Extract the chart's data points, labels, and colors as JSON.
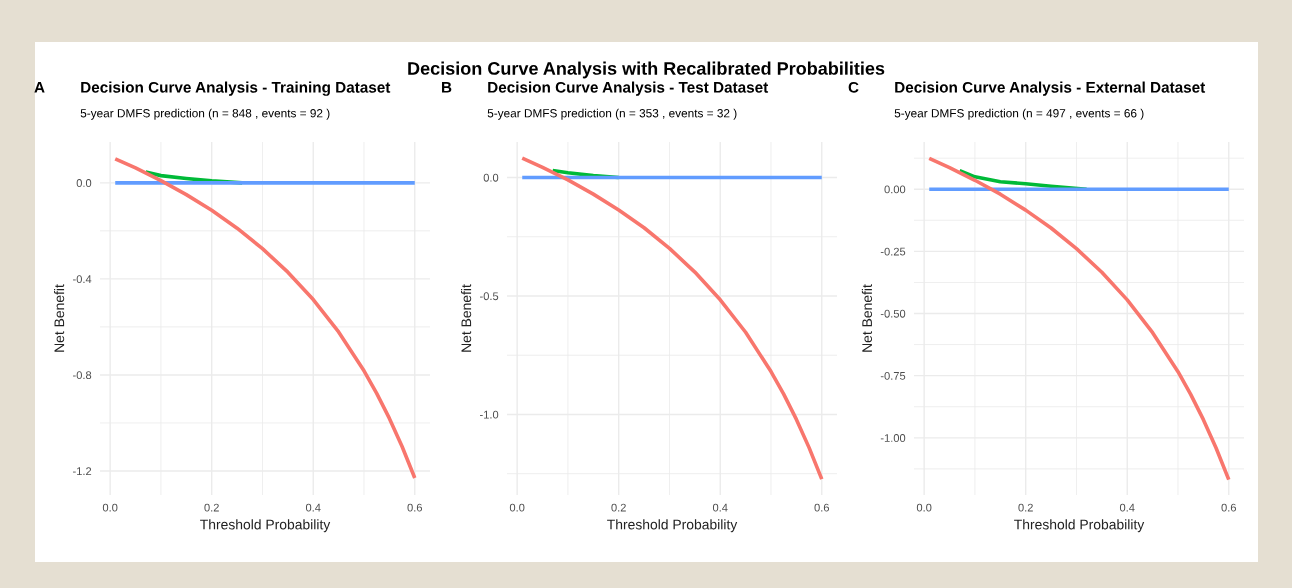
{
  "chart_data": [
    {
      "type": "line",
      "title": "Decision Curve Analysis - Training Dataset",
      "subtitle": "5-year DMFS prediction (n = 848 , events = 92 )",
      "xlabel": "Threshold Probability",
      "ylabel": "Net Benefit",
      "annotations": [
        "A",
        "Decision Curve Analysis with Recalibrated Probabilities"
      ],
      "series": [
        {
          "color": "#f8766d",
          "x": [
            0.01,
            0.05,
            0.1,
            0.15,
            0.2,
            0.25,
            0.3,
            0.35,
            0.4,
            0.45,
            0.5,
            0.525,
            0.55,
            0.575,
            0.6
          ],
          "values": [
            0.1,
            0.062,
            0.009,
            -0.049,
            -0.114,
            -0.189,
            -0.274,
            -0.372,
            -0.486,
            -0.621,
            -0.783,
            -0.877,
            -0.981,
            -1.098,
            -1.229
          ]
        },
        {
          "color": "#00ba38",
          "x": [
            0.07,
            0.1,
            0.15,
            0.2,
            0.26
          ],
          "values": [
            0.045,
            0.03,
            0.018,
            0.008,
            0
          ]
        },
        {
          "color": "#619cff",
          "x": [
            0.01,
            0.6
          ],
          "values": [
            0,
            0
          ]
        }
      ],
      "xlim": [
        -0.02,
        0.63
      ],
      "xticks": [
        {
          "value": 0,
          "label": "0.0"
        },
        {
          "value": 0.1,
          "label": null
        },
        {
          "value": 0.2,
          "label": "0.2"
        },
        {
          "value": 0.3,
          "label": null
        },
        {
          "value": 0.4,
          "label": "0.4"
        },
        {
          "value": 0.5,
          "label": null
        },
        {
          "value": 0.6,
          "label": "0.6"
        }
      ],
      "ylim": [
        -1.3,
        0.17
      ],
      "yticks": [
        {
          "value": 0,
          "label": "0.0"
        },
        {
          "value": -0.2,
          "label": null
        },
        {
          "value": -0.4,
          "label": "-0.4"
        },
        {
          "value": -0.6,
          "label": null
        },
        {
          "value": -0.8,
          "label": "-0.8"
        },
        {
          "value": -1.0,
          "label": null
        },
        {
          "value": -1.2,
          "label": "-1.2"
        }
      ],
      "grid": true,
      "legend": false
    },
    {
      "type": "line",
      "title": "Decision Curve Analysis - Test Dataset",
      "subtitle": "5-year DMFS prediction (n = 353 , events = 32 )",
      "xlabel": "Threshold Probability",
      "ylabel": "Net Benefit",
      "annotations": [
        "B"
      ],
      "series": [
        {
          "color": "#f8766d",
          "x": [
            0.01,
            0.05,
            0.1,
            0.15,
            0.2,
            0.25,
            0.3,
            0.35,
            0.4,
            0.45,
            0.5,
            0.525,
            0.55,
            0.575,
            0.6
          ],
          "values": [
            0.082,
            0.043,
            -0.01,
            -0.07,
            -0.137,
            -0.212,
            -0.299,
            -0.399,
            -0.516,
            -0.653,
            -0.819,
            -0.914,
            -1.021,
            -1.14,
            -1.273
          ]
        },
        {
          "color": "#00ba38",
          "x": [
            0.07,
            0.1,
            0.15,
            0.2
          ],
          "values": [
            0.03,
            0.02,
            0.008,
            0
          ]
        },
        {
          "color": "#619cff",
          "x": [
            0.01,
            0.6
          ],
          "values": [
            0,
            0
          ]
        }
      ],
      "xlim": [
        -0.02,
        0.63
      ],
      "xticks": [
        {
          "value": 0,
          "label": "0.0"
        },
        {
          "value": 0.1,
          "label": null
        },
        {
          "value": 0.2,
          "label": "0.2"
        },
        {
          "value": 0.3,
          "label": null
        },
        {
          "value": 0.4,
          "label": "0.4"
        },
        {
          "value": 0.5,
          "label": null
        },
        {
          "value": 0.6,
          "label": "0.6"
        }
      ],
      "ylim": [
        -1.34,
        0.15
      ],
      "yticks": [
        {
          "value": 0,
          "label": "0.0"
        },
        {
          "value": -0.25,
          "label": null
        },
        {
          "value": -0.5,
          "label": "-0.5"
        },
        {
          "value": -0.75,
          "label": null
        },
        {
          "value": -1.0,
          "label": "-1.0"
        },
        {
          "value": -1.25,
          "label": null
        }
      ],
      "grid": true,
      "legend": false
    },
    {
      "type": "line",
      "title": "Decision Curve Analysis - External Dataset",
      "subtitle": "5-year DMFS prediction (n = 497 , events = 66 )",
      "xlabel": "Threshold Probability",
      "ylabel": "Net Benefit",
      "annotations": [
        "C"
      ],
      "series": [
        {
          "color": "#f8766d",
          "x": [
            0.01,
            0.05,
            0.1,
            0.15,
            0.2,
            0.25,
            0.3,
            0.35,
            0.4,
            0.45,
            0.5,
            0.525,
            0.55,
            0.575,
            0.6
          ],
          "values": [
            0.124,
            0.087,
            0.036,
            -0.02,
            -0.084,
            -0.156,
            -0.239,
            -0.334,
            -0.445,
            -0.577,
            -0.734,
            -0.825,
            -0.927,
            -1.041,
            -1.168
          ]
        },
        {
          "color": "#00ba38",
          "x": [
            0.07,
            0.1,
            0.15,
            0.2,
            0.25,
            0.32
          ],
          "values": [
            0.075,
            0.05,
            0.03,
            0.022,
            0.012,
            0
          ]
        },
        {
          "color": "#619cff",
          "x": [
            0.01,
            0.6
          ],
          "values": [
            0,
            0
          ]
        }
      ],
      "xlim": [
        -0.02,
        0.63
      ],
      "xticks": [
        {
          "value": 0,
          "label": "0.0"
        },
        {
          "value": 0.1,
          "label": null
        },
        {
          "value": 0.2,
          "label": "0.2"
        },
        {
          "value": 0.3,
          "label": null
        },
        {
          "value": 0.4,
          "label": "0.4"
        },
        {
          "value": 0.5,
          "label": null
        },
        {
          "value": 0.6,
          "label": "0.6"
        }
      ],
      "ylim": [
        -1.23,
        0.19
      ],
      "yticks": [
        {
          "value": 0.125,
          "label": null
        },
        {
          "value": 0,
          "label": "0.00"
        },
        {
          "value": -0.125,
          "label": null
        },
        {
          "value": -0.25,
          "label": "-0.25"
        },
        {
          "value": -0.375,
          "label": null
        },
        {
          "value": -0.5,
          "label": "-0.50"
        },
        {
          "value": -0.625,
          "label": null
        },
        {
          "value": -0.75,
          "label": "-0.75"
        },
        {
          "value": -0.875,
          "label": null
        },
        {
          "value": -1.0,
          "label": "-1.00"
        },
        {
          "value": -1.125,
          "label": null
        }
      ],
      "grid": true,
      "legend": false
    }
  ]
}
